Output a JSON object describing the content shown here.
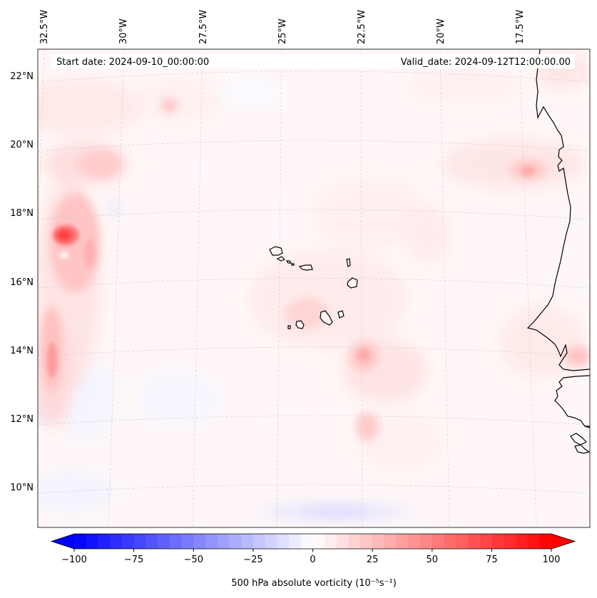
{
  "map": {
    "type": "filled-contour-map",
    "projection": "lambert-conformal",
    "region": "Eastern tropical Atlantic, Cape Verde Islands and West African coast",
    "lon_range": [
      -33,
      -16
    ],
    "lat_range": [
      9,
      22.8
    ],
    "start_date_label": "Start date: 2024-09-10_00:00:00",
    "valid_date_label": "Valid_date: 2024-09-12T12:00:00.00",
    "lon_labels": [
      "32.5°W",
      "30°W",
      "27.5°W",
      "25°W",
      "22.5°W",
      "20°W",
      "17.5°W"
    ],
    "lat_labels": [
      "22°N",
      "20°N",
      "18°N",
      "16°N",
      "14°N",
      "12°N",
      "10°N"
    ],
    "vorticity_features": [
      {
        "name": "western strong maximum",
        "lon": -32.6,
        "lat": 17.3,
        "value": 75
      },
      {
        "name": "western band south",
        "lon": -32.8,
        "lat": 13.8,
        "value": 35
      },
      {
        "name": "northwest small maximum",
        "lon": -29.8,
        "lat": 21.2,
        "value": 30
      },
      {
        "name": "east of Cape Verde maximum",
        "lon": -22.7,
        "lat": 13.9,
        "value": 35
      },
      {
        "name": "southern maximum",
        "lon": -22.5,
        "lat": 11.8,
        "value": 25
      },
      {
        "name": "coastal maximum near Senegal",
        "lon": -17.3,
        "lat": 19.3,
        "value": 30
      },
      {
        "name": "southern negative band",
        "lon": -23.5,
        "lat": 9.3,
        "value": -15
      }
    ]
  },
  "colorbar": {
    "label": "500 hPa absolute vorticity (10⁻⁵s⁻¹)",
    "min": -100,
    "max": 100,
    "tick_labels": [
      "−100",
      "−75",
      "−50",
      "−25",
      "0",
      "25",
      "50",
      "75",
      "100"
    ],
    "low_color": "#0000ff",
    "high_color": "#ff0000",
    "mid_color": "#ffffff"
  }
}
